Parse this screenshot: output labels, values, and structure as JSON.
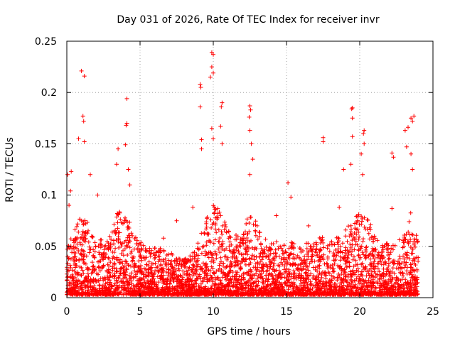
{
  "chart_data": {
    "type": "scatter",
    "title": "Day 031 of 2026, Rate Of TEC Index for receiver invr",
    "xlabel": "GPS time / hours",
    "ylabel": "ROTI / TECUs",
    "xlim": [
      0,
      25
    ],
    "ylim": [
      0,
      0.25
    ],
    "xticks": [
      0,
      5,
      10,
      15,
      20,
      25
    ],
    "xtick_labels": [
      "0",
      "5",
      "10",
      "15",
      "20",
      "25"
    ],
    "yticks": [
      0,
      0.05,
      0.1,
      0.15,
      0.2,
      0.25
    ],
    "ytick_labels": [
      "0",
      "0.05",
      "0.1",
      "0.15",
      "0.2",
      "0.25"
    ],
    "grid": true,
    "marker": "+",
    "color": "#ff0000",
    "series": [
      {
        "name": "ROTI",
        "notable_points": [
          {
            "x": 1.0,
            "y": 0.221
          },
          {
            "x": 1.2,
            "y": 0.216
          },
          {
            "x": 1.1,
            "y": 0.177
          },
          {
            "x": 1.15,
            "y": 0.172
          },
          {
            "x": 1.2,
            "y": 0.152
          },
          {
            "x": 0.8,
            "y": 0.155
          },
          {
            "x": 0.3,
            "y": 0.123
          },
          {
            "x": 0.25,
            "y": 0.104
          },
          {
            "x": 0.15,
            "y": 0.09
          },
          {
            "x": 3.5,
            "y": 0.145
          },
          {
            "x": 3.4,
            "y": 0.13
          },
          {
            "x": 4.1,
            "y": 0.194
          },
          {
            "x": 4.1,
            "y": 0.17
          },
          {
            "x": 4.05,
            "y": 0.168
          },
          {
            "x": 4.0,
            "y": 0.149
          },
          {
            "x": 4.2,
            "y": 0.125
          },
          {
            "x": 4.3,
            "y": 0.11
          },
          {
            "x": 9.9,
            "y": 0.239
          },
          {
            "x": 10.0,
            "y": 0.237
          },
          {
            "x": 9.9,
            "y": 0.225
          },
          {
            "x": 10.0,
            "y": 0.219
          },
          {
            "x": 9.8,
            "y": 0.215
          },
          {
            "x": 9.1,
            "y": 0.208
          },
          {
            "x": 9.15,
            "y": 0.205
          },
          {
            "x": 9.1,
            "y": 0.186
          },
          {
            "x": 10.6,
            "y": 0.19
          },
          {
            "x": 10.55,
            "y": 0.186
          },
          {
            "x": 10.5,
            "y": 0.167
          },
          {
            "x": 9.2,
            "y": 0.154
          },
          {
            "x": 9.2,
            "y": 0.145
          },
          {
            "x": 10.6,
            "y": 0.15
          },
          {
            "x": 10.0,
            "y": 0.155
          },
          {
            "x": 9.9,
            "y": 0.165
          },
          {
            "x": 12.5,
            "y": 0.187
          },
          {
            "x": 12.55,
            "y": 0.183
          },
          {
            "x": 12.45,
            "y": 0.176
          },
          {
            "x": 12.5,
            "y": 0.163
          },
          {
            "x": 12.6,
            "y": 0.15
          },
          {
            "x": 12.7,
            "y": 0.135
          },
          {
            "x": 12.5,
            "y": 0.12
          },
          {
            "x": 15.1,
            "y": 0.112
          },
          {
            "x": 15.3,
            "y": 0.098
          },
          {
            "x": 17.5,
            "y": 0.156
          },
          {
            "x": 17.5,
            "y": 0.152
          },
          {
            "x": 18.9,
            "y": 0.125
          },
          {
            "x": 18.6,
            "y": 0.088
          },
          {
            "x": 19.5,
            "y": 0.185
          },
          {
            "x": 19.45,
            "y": 0.184
          },
          {
            "x": 19.5,
            "y": 0.175
          },
          {
            "x": 19.5,
            "y": 0.157
          },
          {
            "x": 19.4,
            "y": 0.13
          },
          {
            "x": 20.3,
            "y": 0.163
          },
          {
            "x": 20.25,
            "y": 0.16
          },
          {
            "x": 20.3,
            "y": 0.15
          },
          {
            "x": 20.1,
            "y": 0.14
          },
          {
            "x": 20.2,
            "y": 0.12
          },
          {
            "x": 22.2,
            "y": 0.141
          },
          {
            "x": 22.3,
            "y": 0.137
          },
          {
            "x": 23.5,
            "y": 0.175
          },
          {
            "x": 23.7,
            "y": 0.177
          },
          {
            "x": 23.6,
            "y": 0.172
          },
          {
            "x": 23.3,
            "y": 0.166
          },
          {
            "x": 23.1,
            "y": 0.163
          },
          {
            "x": 23.2,
            "y": 0.147
          },
          {
            "x": 23.5,
            "y": 0.14
          },
          {
            "x": 23.6,
            "y": 0.125
          },
          {
            "x": 22.2,
            "y": 0.087
          },
          {
            "x": 8.6,
            "y": 0.088
          },
          {
            "x": 7.5,
            "y": 0.075
          },
          {
            "x": 6.6,
            "y": 0.058
          },
          {
            "x": 14.3,
            "y": 0.08
          },
          {
            "x": 16.5,
            "y": 0.07
          },
          {
            "x": 21.0,
            "y": 0.06
          },
          {
            "x": 2.1,
            "y": 0.1
          },
          {
            "x": 1.6,
            "y": 0.12
          },
          {
            "x": 0.05,
            "y": 0.12
          }
        ],
        "activity_envelope": {
          "hours": [
            0,
            0.5,
            1,
            1.5,
            2,
            2.5,
            3,
            3.5,
            4,
            4.5,
            5,
            5.5,
            6,
            6.5,
            7,
            7.5,
            8,
            8.5,
            9,
            9.5,
            10,
            10.5,
            11,
            11.5,
            12,
            12.5,
            13,
            13.5,
            14,
            14.5,
            15,
            15.5,
            16,
            16.5,
            17,
            17.5,
            18,
            18.5,
            19,
            19.5,
            20,
            20.5,
            21,
            21.5,
            22,
            22.5,
            23,
            23.5,
            24
          ],
          "typical_roti": [
            0.04,
            0.055,
            0.075,
            0.06,
            0.045,
            0.05,
            0.05,
            0.075,
            0.07,
            0.055,
            0.045,
            0.04,
            0.04,
            0.04,
            0.035,
            0.035,
            0.03,
            0.035,
            0.045,
            0.065,
            0.08,
            0.075,
            0.055,
            0.05,
            0.055,
            0.075,
            0.06,
            0.05,
            0.045,
            0.045,
            0.05,
            0.045,
            0.04,
            0.045,
            0.05,
            0.05,
            0.045,
            0.05,
            0.055,
            0.065,
            0.07,
            0.065,
            0.055,
            0.045,
            0.045,
            0.045,
            0.05,
            0.07,
            0.045
          ]
        },
        "time_range": [
          0,
          24
        ]
      }
    ]
  }
}
